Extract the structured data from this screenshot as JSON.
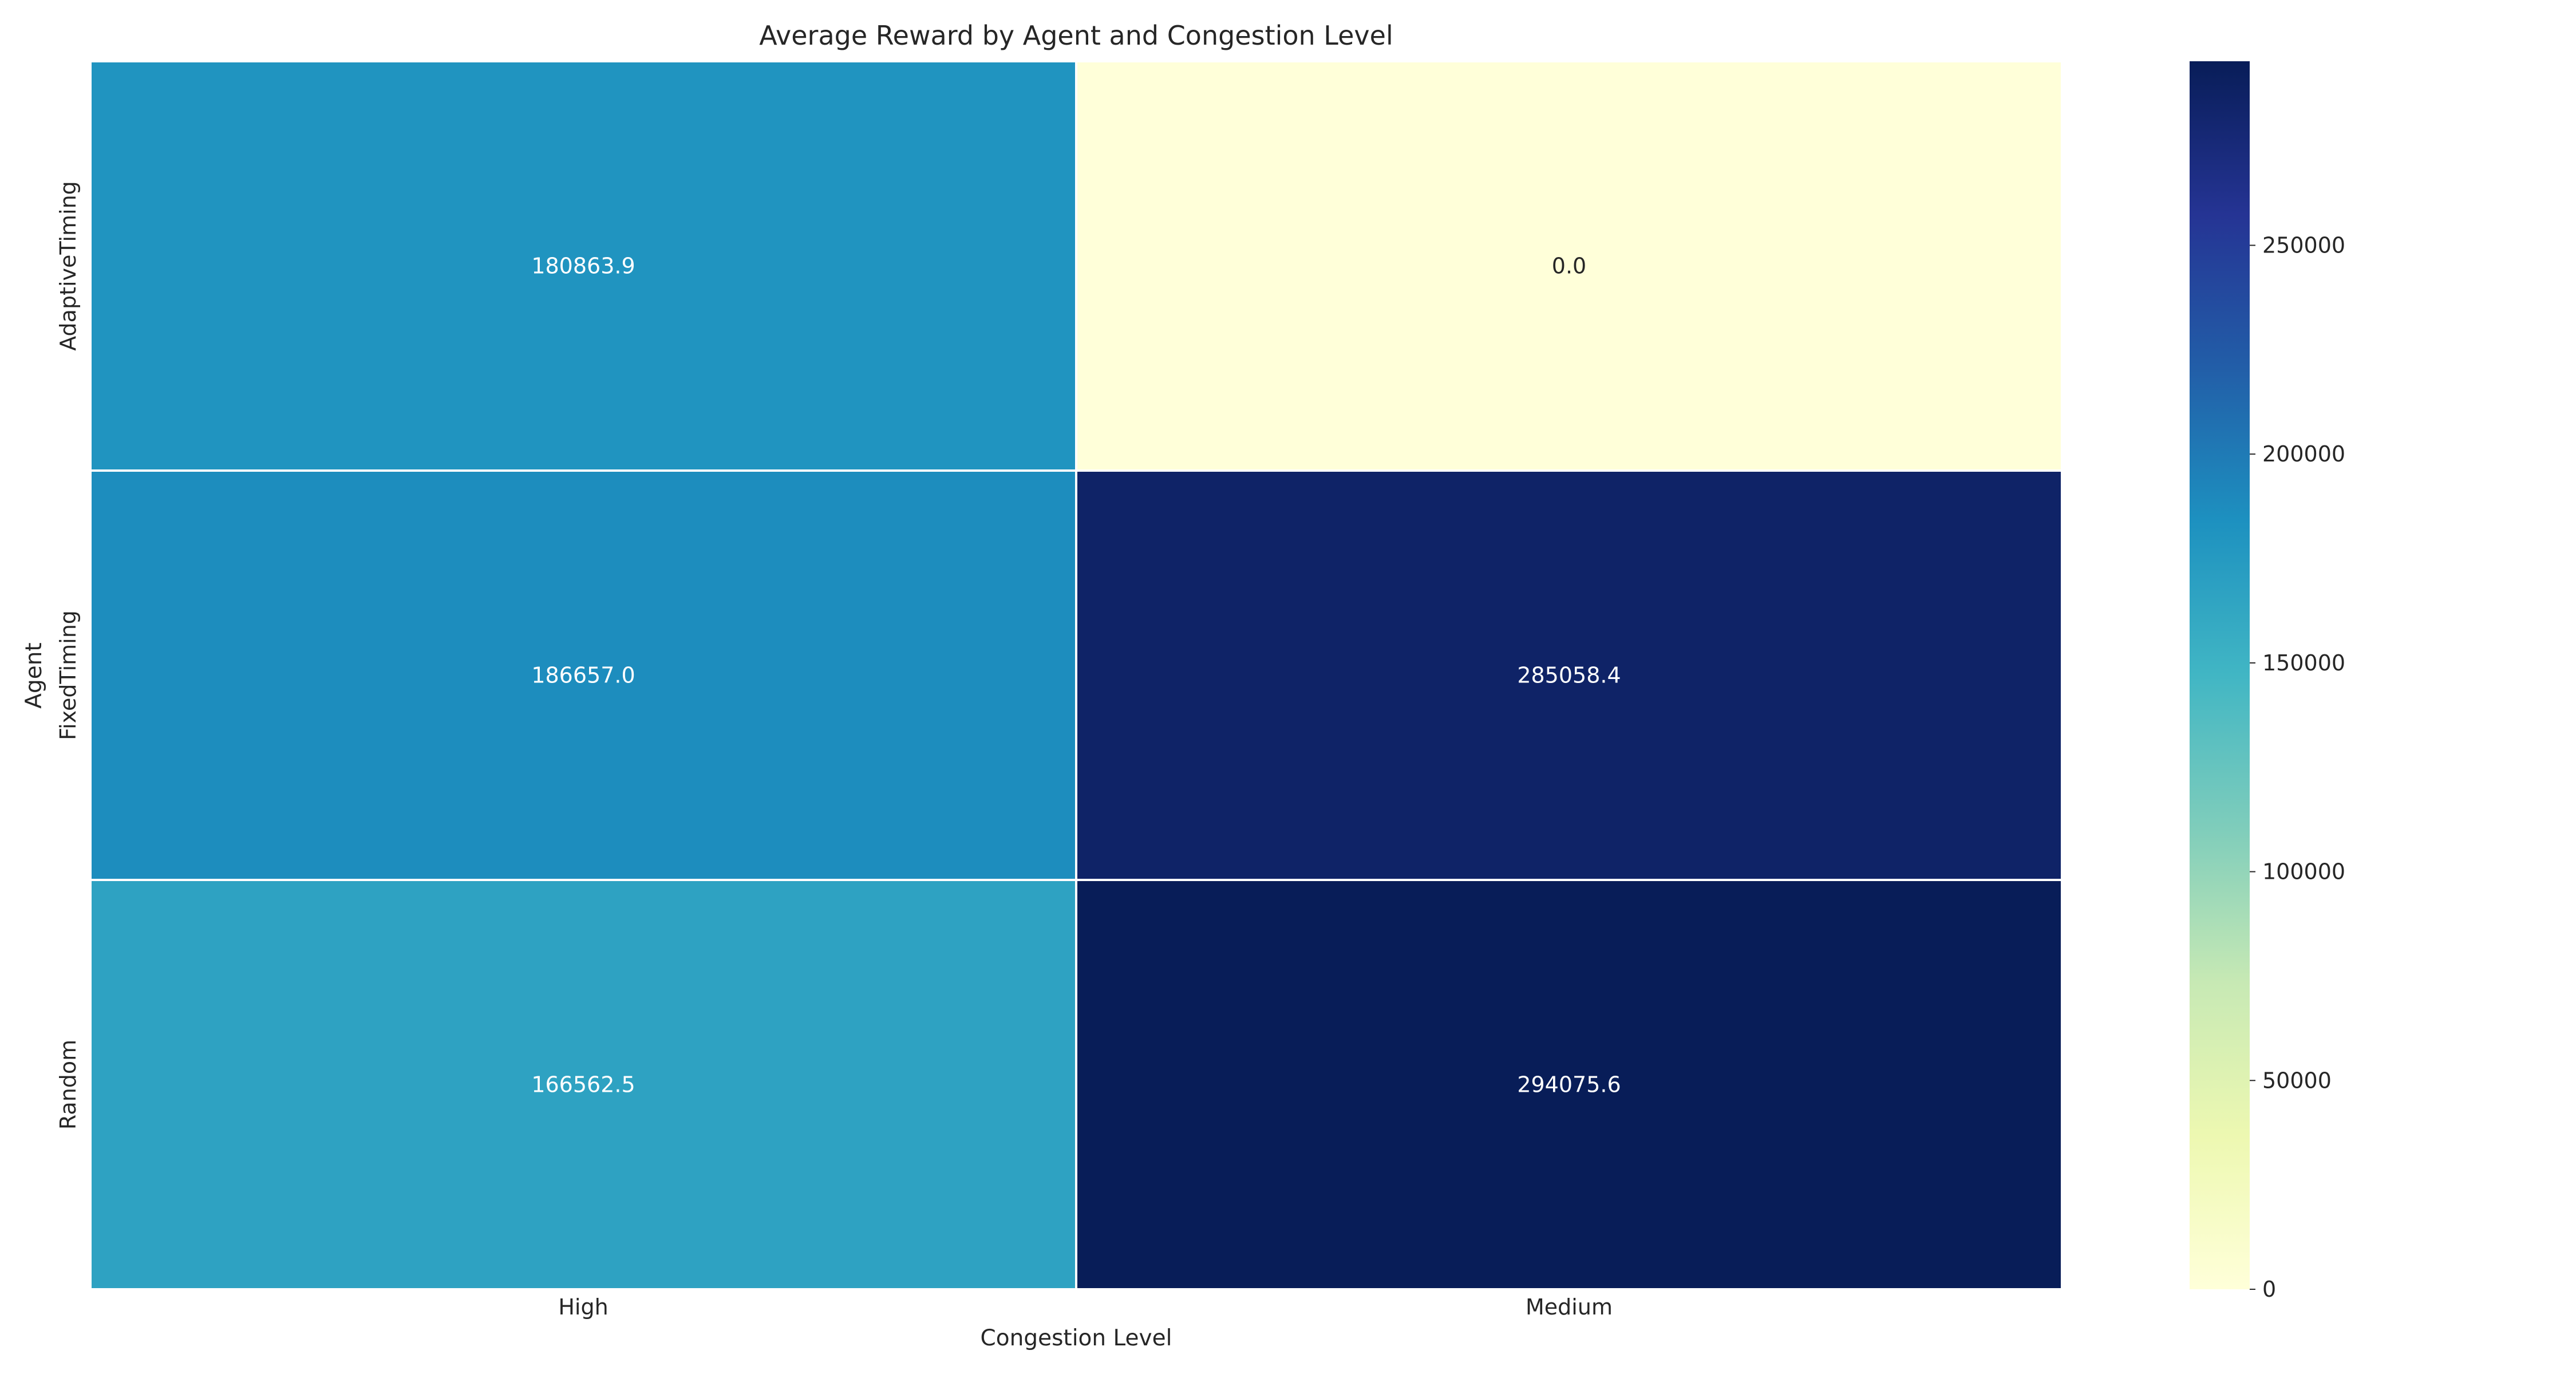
{
  "chart_data": {
    "type": "heatmap",
    "title": "Average Reward by Agent and Congestion Level",
    "xlabel": "Congestion Level",
    "ylabel": "Agent",
    "x_categories": [
      "High",
      "Medium"
    ],
    "y_categories": [
      "AdaptiveTiming",
      "FixedTiming",
      "Random"
    ],
    "values": [
      [
        180863.9,
        0.0
      ],
      [
        186657.0,
        285058.4
      ],
      [
        166562.5,
        294075.6
      ]
    ],
    "value_labels": [
      [
        "180863.9",
        "0.0"
      ],
      [
        "186657.0",
        "285058.4"
      ],
      [
        "166562.5",
        "294075.6"
      ]
    ],
    "colormap": "YlGnBu",
    "colorbar": {
      "range": [
        0,
        294075.6
      ],
      "ticks": [
        0,
        50000,
        100000,
        150000,
        200000,
        250000
      ],
      "tick_labels": [
        "0",
        "50000",
        "100000",
        "150000",
        "200000",
        "250000"
      ],
      "placement": "right"
    },
    "grid": false,
    "legend": "colorbar-right"
  }
}
